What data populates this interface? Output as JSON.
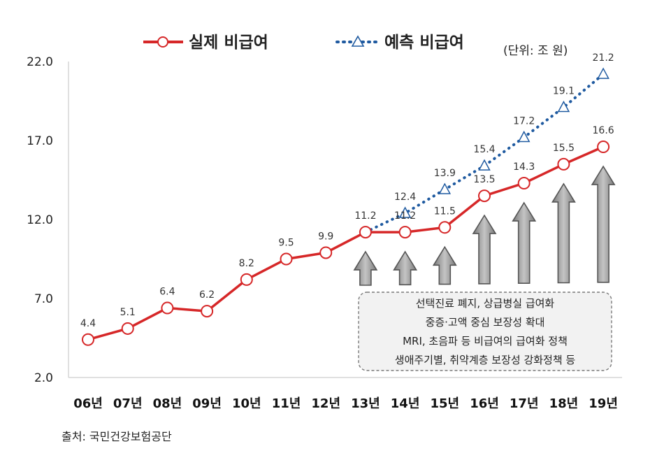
{
  "chart_data": {
    "type": "line",
    "categories": [
      "06년",
      "07년",
      "08년",
      "09년",
      "10년",
      "11년",
      "12년",
      "13년",
      "14년",
      "15년",
      "16년",
      "17년",
      "18년",
      "19년"
    ],
    "series": [
      {
        "name": "실제 비급여",
        "color": "#d62728",
        "style": "solid",
        "marker": "circle",
        "values": [
          4.4,
          5.1,
          6.4,
          6.2,
          8.2,
          9.5,
          9.9,
          11.2,
          11.2,
          11.5,
          13.5,
          14.3,
          15.5,
          16.6
        ]
      },
      {
        "name": "예측 비급여",
        "color": "#1f5aa0",
        "style": "dotted",
        "marker": "triangle",
        "values": [
          null,
          null,
          null,
          null,
          null,
          null,
          null,
          11.2,
          12.4,
          13.9,
          15.4,
          17.2,
          19.1,
          21.2
        ]
      }
    ],
    "ylim": [
      2.0,
      22.0
    ],
    "yticks": [
      "2.0",
      "7.0",
      "12.0",
      "17.0",
      "22.0"
    ],
    "grid": false,
    "legend": "top",
    "unit_label": "(단위: 조 원)",
    "arrow_categories": [
      "13년",
      "14년",
      "15년",
      "16년",
      "17년",
      "18년",
      "19년"
    ],
    "note_lines": [
      "선택진료 폐지, 상급병실 급여화",
      "중증·고액 중심 보장성 확대",
      "MRI, 초음파 등 비급여의 급여화 정책",
      "생애주기별, 취약계층 보장성 강화정책 등"
    ],
    "source": "출처: 국민건강보험공단"
  }
}
